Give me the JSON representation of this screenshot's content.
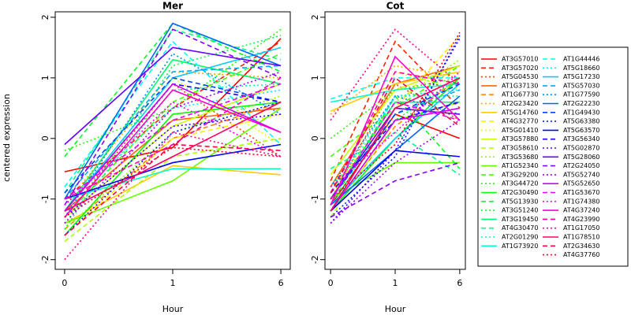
{
  "ylabel": "centered expression",
  "legend": [
    {
      "name": "AT3G57010",
      "color": "#FF0000",
      "dash": "solid"
    },
    {
      "name": "AT3G57020",
      "color": "#FF2200",
      "dash": "dashed"
    },
    {
      "name": "AT5G04530",
      "color": "#FF4400",
      "dash": "dotted"
    },
    {
      "name": "AT1G37130",
      "color": "#FF6600",
      "dash": "solid"
    },
    {
      "name": "AT1G67730",
      "color": "#FF8800",
      "dash": "dashed"
    },
    {
      "name": "AT2G23420",
      "color": "#FFAA00",
      "dash": "dotted"
    },
    {
      "name": "AT5G14760",
      "color": "#FFCC00",
      "dash": "solid"
    },
    {
      "name": "AT4G32770",
      "color": "#FFEE00",
      "dash": "dashed"
    },
    {
      "name": "AT5G01410",
      "color": "#EEFF00",
      "dash": "dotted"
    },
    {
      "name": "AT3G57880",
      "color": "#CCFF00",
      "dash": "solid"
    },
    {
      "name": "AT3G58610",
      "color": "#AAFF00",
      "dash": "dashed"
    },
    {
      "name": "AT3G53680",
      "color": "#88FF00",
      "dash": "dotted"
    },
    {
      "name": "AT1G52340",
      "color": "#66FF00",
      "dash": "solid"
    },
    {
      "name": "AT3G29200",
      "color": "#44FF00",
      "dash": "dashed"
    },
    {
      "name": "AT3G44720",
      "color": "#22FF00",
      "dash": "dotted"
    },
    {
      "name": "AT2G30490",
      "color": "#00FF00",
      "dash": "solid"
    },
    {
      "name": "AT5G13930",
      "color": "#00FF22",
      "dash": "dashed"
    },
    {
      "name": "AT3G51240",
      "color": "#00FF44",
      "dash": "dotted"
    },
    {
      "name": "AT3G19450",
      "color": "#00FF66",
      "dash": "solid"
    },
    {
      "name": "AT4G30470",
      "color": "#00FF88",
      "dash": "dashed"
    },
    {
      "name": "AT2G01290",
      "color": "#00FFAA",
      "dash": "dotted"
    },
    {
      "name": "AT1G73920",
      "color": "#00FFCC",
      "dash": "solid"
    },
    {
      "name": "AT1G44446",
      "color": "#00FFEE",
      "dash": "dashed"
    },
    {
      "name": "AT5G18660",
      "color": "#00EEFF",
      "dash": "dotted"
    },
    {
      "name": "AT5G17230",
      "color": "#00CCFF",
      "dash": "solid"
    },
    {
      "name": "AT5G57030",
      "color": "#00AAFF",
      "dash": "dashed"
    },
    {
      "name": "AT1G77590",
      "color": "#0088FF",
      "dash": "dotted"
    },
    {
      "name": "AT2G22230",
      "color": "#0066FF",
      "dash": "solid"
    },
    {
      "name": "AT1G49430",
      "color": "#0044FF",
      "dash": "dashed"
    },
    {
      "name": "AT5G63380",
      "color": "#0022FF",
      "dash": "dotted"
    },
    {
      "name": "AT5G63570",
      "color": "#0000FF",
      "dash": "solid"
    },
    {
      "name": "AT3G56340",
      "color": "#2200FF",
      "dash": "dashed"
    },
    {
      "name": "AT5G02870",
      "color": "#4400FF",
      "dash": "dotted"
    },
    {
      "name": "AT5G28060",
      "color": "#6600FF",
      "dash": "solid"
    },
    {
      "name": "AT2G24050",
      "color": "#8800FF",
      "dash": "dashed"
    },
    {
      "name": "AT5G52740",
      "color": "#AA00FF",
      "dash": "dotted"
    },
    {
      "name": "AT5G52650",
      "color": "#CC00FF",
      "dash": "solid"
    },
    {
      "name": "AT1G53670",
      "color": "#EE00FF",
      "dash": "dashed"
    },
    {
      "name": "AT1G74380",
      "color": "#FF00EE",
      "dash": "dotted"
    },
    {
      "name": "AT4G37240",
      "color": "#FF00CC",
      "dash": "solid"
    },
    {
      "name": "AT4G23990",
      "color": "#FF00AA",
      "dash": "dashed"
    },
    {
      "name": "AT1G17050",
      "color": "#FF0088",
      "dash": "dotted"
    },
    {
      "name": "AT1G78510",
      "color": "#FF0066",
      "dash": "solid"
    },
    {
      "name": "AT2G34630",
      "color": "#FF0044",
      "dash": "dashed"
    },
    {
      "name": "AT4G37760",
      "color": "#FF0022",
      "dash": "dotted"
    }
  ],
  "chart_data": [
    {
      "type": "line",
      "title": "Mer",
      "xlabel": "Hour",
      "categories": [
        "0",
        "1",
        "6"
      ],
      "ylim": [
        -2.16,
        2.09
      ],
      "yticks": [
        -2,
        -1,
        0,
        1,
        2
      ],
      "series": [
        {
          "values": [
            -0.55,
            -0.15,
            1.65
          ]
        },
        {
          "values": [
            -1.0,
            0.5,
            1.6
          ]
        },
        {
          "values": [
            -1.3,
            0.9,
            -0.3
          ]
        },
        {
          "values": [
            -1.2,
            0.3,
            0.5
          ]
        },
        {
          "values": [
            -1.5,
            0.0,
            0.6
          ]
        },
        {
          "values": [
            -1.1,
            1.1,
            1.0
          ]
        },
        {
          "values": [
            -1.4,
            -0.45,
            -0.6
          ]
        },
        {
          "values": [
            -1.6,
            0.0,
            0.4
          ]
        },
        {
          "values": [
            -1.2,
            1.0,
            -0.1
          ]
        },
        {
          "values": [
            -1.3,
            0.2,
            0.9
          ]
        },
        {
          "values": [
            -1.7,
            -0.3,
            0.0
          ]
        },
        {
          "values": [
            -1.5,
            0.1,
            0.7
          ]
        },
        {
          "values": [
            -1.4,
            -0.7,
            0.5
          ]
        },
        {
          "values": [
            -1.3,
            0.6,
            1.4
          ]
        },
        {
          "values": [
            -0.2,
            0.5,
            1.8
          ]
        },
        {
          "values": [
            -1.6,
            0.4,
            0.6
          ]
        },
        {
          "values": [
            -0.3,
            1.9,
            1.1
          ]
        },
        {
          "values": [
            -1.5,
            1.2,
            1.7
          ]
        },
        {
          "values": [
            -1.2,
            1.3,
            0.9
          ]
        },
        {
          "values": [
            -0.9,
            1.8,
            1.3
          ]
        },
        {
          "values": [
            -1.4,
            0.8,
            0.9
          ]
        },
        {
          "values": [
            -1.0,
            -0.5,
            -0.5
          ]
        },
        {
          "values": [
            -0.8,
            1.6,
            -0.1
          ]
        },
        {
          "values": [
            -1.1,
            0.5,
            0.8
          ]
        },
        {
          "values": [
            -1.2,
            1.0,
            1.5
          ]
        },
        {
          "values": [
            -1.0,
            1.1,
            1.2
          ]
        },
        {
          "values": [
            -1.3,
            1.4,
            0.4
          ]
        },
        {
          "values": [
            -1.0,
            1.9,
            1.2
          ]
        },
        {
          "values": [
            -0.9,
            1.0,
            0.6
          ]
        },
        {
          "values": [
            -1.6,
            0.1,
            0.6
          ]
        },
        {
          "values": [
            -1.0,
            -0.4,
            -0.1
          ]
        },
        {
          "values": [
            -1.2,
            0.9,
            0.6
          ]
        },
        {
          "values": [
            -1.3,
            0.2,
            0.4
          ]
        },
        {
          "values": [
            -0.1,
            1.5,
            1.2
          ]
        },
        {
          "values": [
            -1.1,
            1.8,
            1.0
          ]
        },
        {
          "values": [
            -1.4,
            0.5,
            1.1
          ]
        },
        {
          "values": [
            -1.2,
            0.9,
            0.1
          ]
        },
        {
          "values": [
            -1.0,
            0.3,
            0.9
          ]
        },
        {
          "values": [
            -1.1,
            0.6,
            -0.3
          ]
        },
        {
          "values": [
            -1.3,
            0.8,
            0.1
          ]
        },
        {
          "values": [
            -1.0,
            -0.1,
            1.0
          ]
        },
        {
          "values": [
            -2.0,
            0.1,
            -0.3
          ]
        },
        {
          "values": [
            -1.2,
            -0.3,
            0.6
          ]
        },
        {
          "values": [
            -1.6,
            -0.1,
            -0.2
          ]
        },
        {
          "values": [
            -1.3,
            -0.15,
            -0.3
          ]
        }
      ]
    },
    {
      "type": "line",
      "title": "Cot",
      "xlabel": "Hour",
      "categories": [
        "0",
        "1",
        "6"
      ],
      "ylim": [
        -2.16,
        2.09
      ],
      "yticks": [
        -2,
        -1,
        0,
        1,
        2
      ],
      "series": [
        {
          "values": [
            -1.1,
            0.4,
            0.0
          ]
        },
        {
          "values": [
            -0.7,
            1.6,
            0.5
          ]
        },
        {
          "values": [
            -1.0,
            0.9,
            0.3
          ]
        },
        {
          "values": [
            -0.8,
            0.9,
            1.2
          ]
        },
        {
          "values": [
            -1.2,
            0.2,
            1.0
          ]
        },
        {
          "values": [
            0.4,
            1.2,
            1.0
          ]
        },
        {
          "values": [
            0.45,
            0.9,
            1.1
          ]
        },
        {
          "values": [
            -0.9,
            0.5,
            1.7
          ]
        },
        {
          "values": [
            -1.0,
            1.1,
            0.8
          ]
        },
        {
          "values": [
            -0.6,
            0.8,
            1.2
          ]
        },
        {
          "values": [
            -1.3,
            0.3,
            0.6
          ]
        },
        {
          "values": [
            -0.9,
            0.6,
            1.3
          ]
        },
        {
          "values": [
            -1.0,
            -0.4,
            -0.4
          ]
        },
        {
          "values": [
            -0.3,
            0.5,
            1.2
          ]
        },
        {
          "values": [
            0.0,
            0.8,
            1.0
          ]
        },
        {
          "values": [
            -1.2,
            0.0,
            1.0
          ]
        },
        {
          "values": [
            -1.1,
            0.7,
            -0.5
          ]
        },
        {
          "values": [
            -0.8,
            0.3,
            1.0
          ]
        },
        {
          "values": [
            -1.0,
            0.6,
            0.6
          ]
        },
        {
          "values": [
            -0.5,
            0.1,
            -0.6
          ]
        },
        {
          "values": [
            -1.2,
            0.7,
            0.7
          ]
        },
        {
          "values": [
            0.6,
            0.8,
            0.9
          ]
        },
        {
          "values": [
            0.65,
            1.0,
            1.0
          ]
        },
        {
          "values": [
            -0.9,
            0.7,
            0.8
          ]
        },
        {
          "values": [
            -1.1,
            0.0,
            0.9
          ]
        },
        {
          "values": [
            -1.0,
            0.4,
            0.8
          ]
        },
        {
          "values": [
            -0.8,
            0.7,
            0.4
          ]
        },
        {
          "values": [
            -1.1,
            -0.2,
            0.7
          ]
        },
        {
          "values": [
            -1.0,
            0.4,
            0.9
          ]
        },
        {
          "values": [
            -1.3,
            -0.3,
            1.7
          ]
        },
        {
          "values": [
            -1.2,
            -0.2,
            -0.3
          ]
        },
        {
          "values": [
            -0.9,
            0.3,
            0.6
          ]
        },
        {
          "values": [
            -1.4,
            -0.2,
            1.65
          ]
        },
        {
          "values": [
            -1.0,
            0.5,
            0.4
          ]
        },
        {
          "values": [
            -1.3,
            -0.7,
            -0.4
          ]
        },
        {
          "values": [
            -1.4,
            -0.4,
            0.3
          ]
        },
        {
          "values": [
            -1.2,
            0.3,
            0.5
          ]
        },
        {
          "values": [
            -1.0,
            0.6,
            0.3
          ]
        },
        {
          "values": [
            -0.8,
            0.1,
            1.1
          ]
        },
        {
          "values": [
            -1.1,
            1.35,
            0.3
          ]
        },
        {
          "values": [
            -0.9,
            1.1,
            0.9
          ]
        },
        {
          "values": [
            0.3,
            1.8,
            0.9
          ]
        },
        {
          "values": [
            -1.2,
            0.5,
            1.0
          ]
        },
        {
          "values": [
            -0.9,
            1.0,
            0.2
          ]
        },
        {
          "values": [
            -1.0,
            -0.1,
            1.75
          ]
        }
      ]
    }
  ]
}
